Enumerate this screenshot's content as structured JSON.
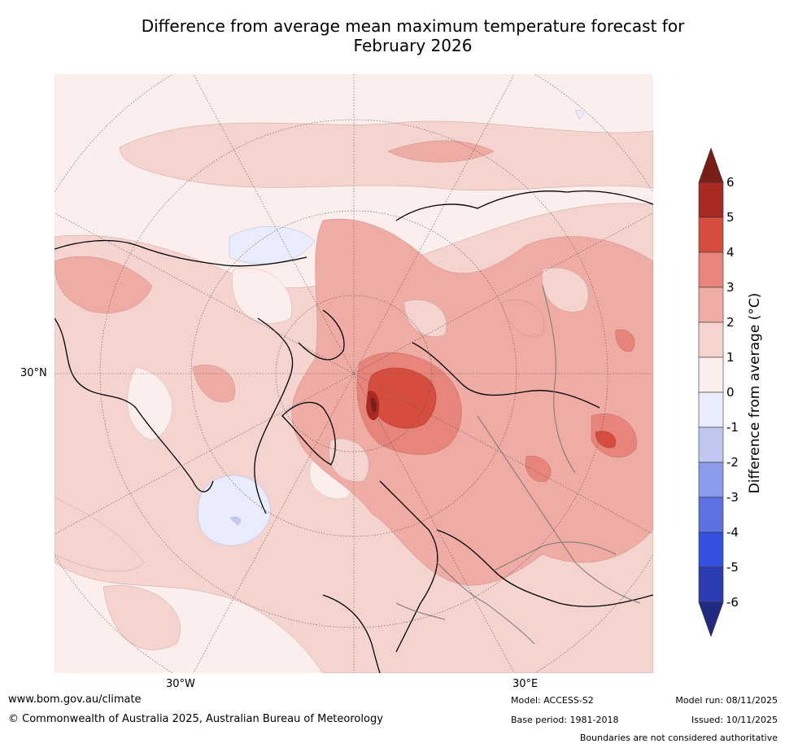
{
  "title_line1": "Difference from average mean maximum temperature forecast for",
  "title_line2": "February 2026",
  "map": {
    "lat_label": "30°N",
    "lon_labels": [
      "30°W",
      "30°E"
    ]
  },
  "legend": {
    "title": "Difference from average (°C)",
    "ticks": [
      "6",
      "5",
      "4",
      "3",
      "2",
      "1",
      "0",
      "-1",
      "-2",
      "-3",
      "-4",
      "-5",
      "-6"
    ],
    "colors": {
      "over": "#7b1d17",
      "c5_6": "#a82a23",
      "c4_5": "#d64d40",
      "c3_4": "#e8857b",
      "c2_3": "#efaca5",
      "c1_2": "#f5d4cf",
      "c0_1": "#fceeec",
      "cm1_0": "#e8ecfb",
      "cm2_m1": "#c0c8f2",
      "cm3_m2": "#8b9bea",
      "cm4_m3": "#5c72e2",
      "cm5_m4": "#3350de",
      "cm6_m5": "#2a3cb0",
      "under": "#1f2a80"
    }
  },
  "footer": {
    "website": "www.bom.gov.au/climate",
    "copyright": "© Commonwealth of Australia 2025, Australian Bureau of Meteorology",
    "model": "Model: ACCESS-S2",
    "base_period": "Base period: 1981-2018",
    "model_run": "Model run: 08/11/2025",
    "issued": "Issued: 10/11/2025",
    "disclaimer": "Boundaries are not considered authoritative"
  }
}
